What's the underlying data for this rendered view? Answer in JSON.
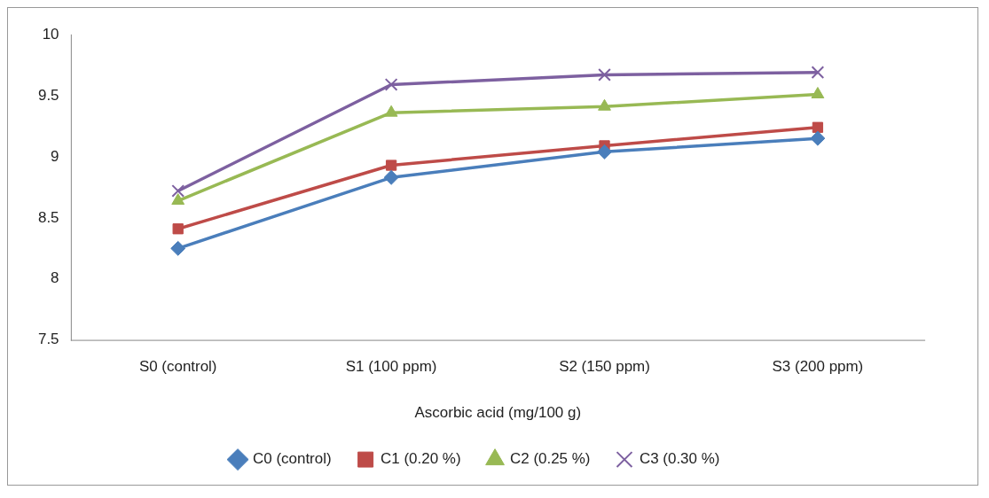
{
  "chart_data": {
    "type": "line",
    "xlabel": "Ascorbic acid (mg/100 g)",
    "categories": [
      "S0 (control)",
      "S1 (100 ppm)",
      "S2 (150 ppm)",
      "S3 (200 ppm)"
    ],
    "series": [
      {
        "name": "C0 (control)",
        "color": "#4a7ebb",
        "marker": "diamond",
        "values": [
          8.25,
          8.83,
          9.04,
          9.15
        ]
      },
      {
        "name": "C1 (0.20 %)",
        "color": "#be4b48",
        "marker": "square",
        "values": [
          8.41,
          8.93,
          9.09,
          9.24
        ]
      },
      {
        "name": "C2 (0.25 %)",
        "color": "#98b954",
        "marker": "triangle",
        "values": [
          8.64,
          9.36,
          9.41,
          9.51
        ]
      },
      {
        "name": "C3 (0.30 %)",
        "color": "#7d60a0",
        "marker": "cross",
        "values": [
          8.72,
          9.59,
          9.67,
          9.69
        ]
      }
    ],
    "ylim": [
      7.5,
      10
    ],
    "yticks": [
      7.5,
      8,
      8.5,
      9,
      9.5,
      10
    ],
    "grid": false,
    "legend": "bottom",
    "line_style": "solid"
  }
}
